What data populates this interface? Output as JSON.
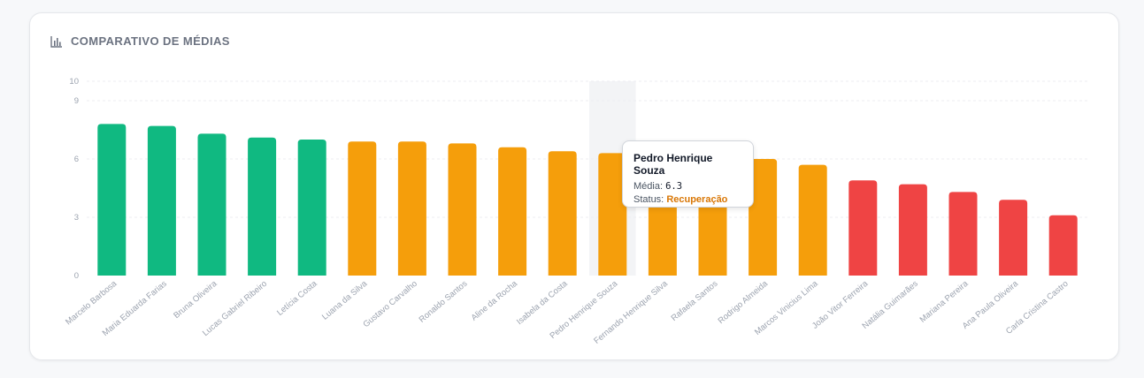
{
  "card": {
    "title": "COMPARATIVO DE MÉDIAS",
    "icon": "bar-chart-icon"
  },
  "colors": {
    "aprovado": "#10b981",
    "recuperacao": "#f59e0b",
    "reprovado": "#ef4444",
    "grid": "#eceef1",
    "hover_band": "#f3f4f6"
  },
  "chart_data": {
    "type": "bar",
    "title": "COMPARATIVO DE MÉDIAS",
    "xlabel": "",
    "ylabel": "",
    "ylim": [
      0,
      10
    ],
    "y_ticks": [
      0,
      3,
      6,
      9,
      10
    ],
    "grid": true,
    "categories": [
      "Marcelo Barbosa",
      "Maria Eduarda Farias",
      "Bruna Oliveira",
      "Lucas Gabriel Ribeiro",
      "Letícia Costa",
      "Luana da Silva",
      "Gustavo Carvalho",
      "Ronaldo Santos",
      "Aline da Rocha",
      "Isabela da Costa",
      "Pedro Henrique Souza",
      "Fernando Henrique Silva",
      "Rafaela Santos",
      "Rodrigo Almeida",
      "Marcos Vinicius Lima",
      "João Vitor Ferreira",
      "Natália Guimarães",
      "Mariana Pereira",
      "Ana Paula Oliveira",
      "Carla Cristina Castro"
    ],
    "values": [
      7.8,
      7.7,
      7.3,
      7.1,
      7.0,
      6.9,
      6.9,
      6.8,
      6.6,
      6.4,
      6.3,
      6.2,
      6.1,
      6.0,
      5.7,
      4.9,
      4.7,
      4.3,
      3.9,
      3.1
    ],
    "status": [
      "aprovado",
      "aprovado",
      "aprovado",
      "aprovado",
      "aprovado",
      "recuperacao",
      "recuperacao",
      "recuperacao",
      "recuperacao",
      "recuperacao",
      "recuperacao",
      "recuperacao",
      "recuperacao",
      "recuperacao",
      "recuperacao",
      "reprovado",
      "reprovado",
      "reprovado",
      "reprovado",
      "reprovado"
    ],
    "hover_index": 10
  },
  "tooltip": {
    "name": "Pedro Henrique Souza",
    "media_label": "Média:",
    "media_value": "6.3",
    "status_label": "Status:",
    "status_value": "Recuperação"
  }
}
